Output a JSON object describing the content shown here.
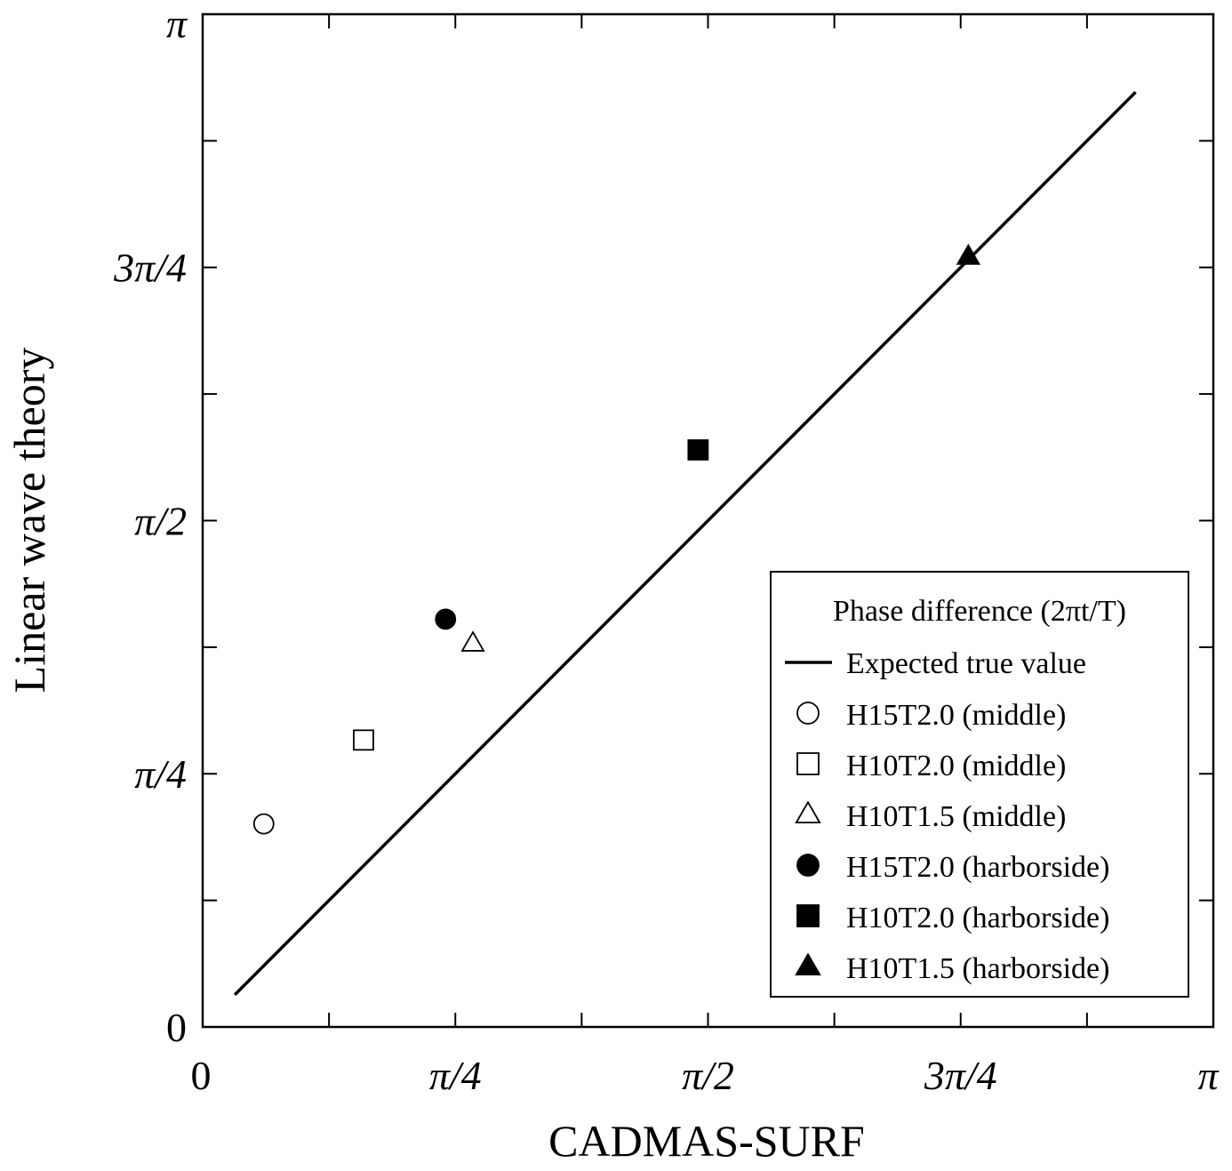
{
  "chart_data": {
    "type": "scatter",
    "title": "",
    "xlabel": "CADMAS-SURF",
    "ylabel": "Linear wave theory",
    "xlim": [
      0,
      3.14159
    ],
    "ylim": [
      0,
      3.14159
    ],
    "x_ticks": [
      {
        "value": 0,
        "label": "0"
      },
      {
        "value": 0.7854,
        "label": "π/4"
      },
      {
        "value": 1.5708,
        "label": "π/2"
      },
      {
        "value": 2.3562,
        "label": "3π/4"
      },
      {
        "value": 3.14159,
        "label": "π"
      }
    ],
    "y_ticks": [
      {
        "value": 0,
        "label": "0"
      },
      {
        "value": 0.7854,
        "label": "π/4"
      },
      {
        "value": 1.5708,
        "label": "π/2"
      },
      {
        "value": 2.3562,
        "label": "3π/4"
      },
      {
        "value": 3.14159,
        "label": "π"
      }
    ],
    "minor_tick_step": 0.3927,
    "grid": false,
    "legend_position": "bottom-right",
    "legend_title": "Phase difference (2πt/T)",
    "reference_line": {
      "name": "Expected true value",
      "points": [
        [
          0.1,
          0.1
        ],
        [
          2.9,
          2.9
        ]
      ]
    },
    "series": [
      {
        "name": "H15T2.0 (middle)",
        "marker": "circle",
        "filled": false,
        "x": [
          0.19
        ],
        "y": [
          0.63
        ]
      },
      {
        "name": "H10T2.0 (middle)",
        "marker": "square",
        "filled": false,
        "x": [
          0.5
        ],
        "y": [
          0.89
        ]
      },
      {
        "name": "H10T1.5 (middle)",
        "marker": "triangle",
        "filled": false,
        "x": [
          0.84
        ],
        "y": [
          1.19
        ]
      },
      {
        "name": "H15T2.0 (harborside)",
        "marker": "circle",
        "filled": true,
        "x": [
          0.755
        ],
        "y": [
          1.265
        ]
      },
      {
        "name": "H10T2.0 (harborside)",
        "marker": "square",
        "filled": true,
        "x": [
          1.54
        ],
        "y": [
          1.79
        ]
      },
      {
        "name": "H10T1.5 (harborside)",
        "marker": "triangle",
        "filled": true,
        "x": [
          2.38
        ],
        "y": [
          2.39
        ]
      }
    ]
  }
}
